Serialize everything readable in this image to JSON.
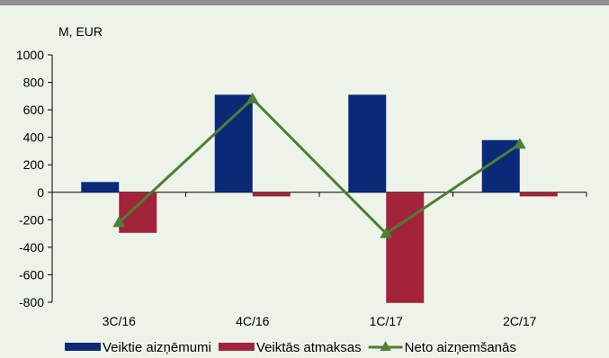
{
  "chart_data": {
    "type": "bar",
    "unit_label": "M, EUR",
    "categories": [
      "3C/16",
      "4C/16",
      "1C/17",
      "2C/17"
    ],
    "ylim": [
      -800,
      1000
    ],
    "yticks": [
      1000,
      800,
      600,
      400,
      200,
      0,
      -200,
      -400,
      -600,
      -800
    ],
    "grid": false,
    "legend_position": "bottom",
    "series": [
      {
        "name": "Veiktie aizņēmumi",
        "kind": "bar",
        "color": "#0a2a78",
        "values": [
          75,
          710,
          710,
          380
        ]
      },
      {
        "name": "Veiktās atmaksas",
        "kind": "bar",
        "color": "#a3243a",
        "values": [
          -295,
          -30,
          -805,
          -30
        ]
      },
      {
        "name": "Neto aizņemšanās",
        "kind": "line",
        "color": "#4d7f35",
        "marker": "triangle",
        "values": [
          -220,
          680,
          -300,
          350
        ]
      }
    ]
  }
}
